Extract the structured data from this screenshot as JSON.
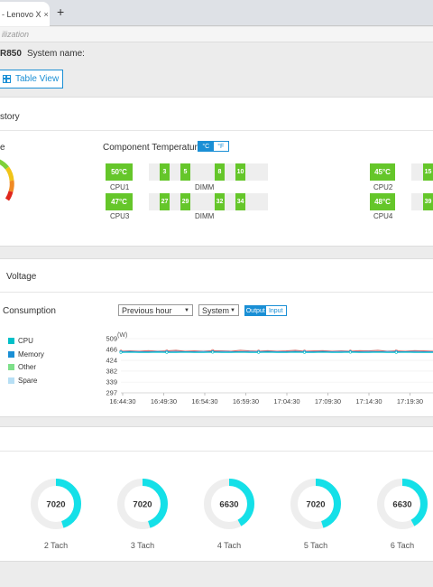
{
  "browser": {
    "tab_title": "- Lenovo X",
    "tab_close": "×",
    "new_tab": "+"
  },
  "breadcrumb": "ilization",
  "system": {
    "model": "R850",
    "system_name_label": "System name:",
    "table_view_label": "Table View"
  },
  "history_panel": {
    "title": "story",
    "gauge_label": "e",
    "component_temp_label": "Component Temperature",
    "unit_c": "°C",
    "unit_f": "°F",
    "cpus": [
      {
        "value": "50°C",
        "label": "CPU1"
      },
      {
        "value": "45°C",
        "label": "CPU2"
      },
      {
        "value": "47°C",
        "label": "CPU3"
      },
      {
        "value": "48°C",
        "label": "CPU4"
      }
    ],
    "dimm_label": "DIMM",
    "dimm_row1": [
      "3",
      "5",
      "8",
      "10"
    ],
    "dimm_row1_right": "15",
    "dimm_row2": [
      "27",
      "29",
      "32",
      "34"
    ],
    "dimm_row2_right": "39"
  },
  "voltage_panel": {
    "title": "Voltage",
    "consumption_label": "Consumption",
    "range_select": "Previous hour",
    "scope_select": "System",
    "output_label": "Output",
    "input_label": "Input",
    "legend": [
      {
        "name": "CPU",
        "color": "#00c0c8"
      },
      {
        "name": "Memory",
        "color": "#1a8fd5"
      },
      {
        "name": "Other",
        "color": "#7ee08a"
      },
      {
        "name": "Spare",
        "color": "#b7dff5"
      }
    ]
  },
  "chart_data": {
    "type": "line",
    "ylabel": "(W)",
    "yticks": [
      "509",
      "466",
      "424",
      "382",
      "339",
      "297"
    ],
    "xticks": [
      "16:44:30",
      "16:49:30",
      "16:54:30",
      "16:59:30",
      "17:04:30",
      "17:09:30",
      "17:14:30",
      "17:19:30"
    ],
    "ylim": [
      297,
      509
    ],
    "series": [
      {
        "name": "",
        "color": "#d9534f",
        "values": [
          460,
          461,
          460,
          462,
          460,
          461,
          463,
          460,
          461,
          460,
          462,
          461,
          460,
          463,
          461,
          460,
          462,
          460,
          461,
          463,
          460,
          461,
          462,
          460,
          461,
          460,
          462,
          461,
          463,
          460,
          461,
          460,
          462,
          461,
          460
        ]
      },
      {
        "name": "",
        "color": "#1a8fd5",
        "values": [
          458,
          459,
          458,
          458,
          459,
          458,
          459,
          458,
          458,
          459,
          458,
          459,
          458,
          458,
          459,
          458,
          459,
          458,
          458,
          459,
          458,
          458,
          459,
          458,
          459,
          458,
          458,
          459,
          458,
          459,
          458,
          458,
          459,
          458,
          458
        ]
      },
      {
        "name": "",
        "color": "#00c0c8",
        "values": [
          455,
          456,
          455,
          455,
          456,
          455,
          455,
          456,
          455,
          455,
          456,
          455,
          455,
          456,
          455,
          455,
          456,
          455,
          455,
          456,
          455,
          455,
          456,
          455,
          455,
          456,
          455,
          455,
          456,
          455,
          455,
          456,
          455,
          455,
          455
        ]
      }
    ],
    "grid": true
  },
  "fan_panel": {
    "tachs": [
      {
        "value": "7020",
        "label": "2 Tach",
        "fraction": 0.45
      },
      {
        "value": "7020",
        "label": "3 Tach",
        "fraction": 0.45
      },
      {
        "value": "6630",
        "label": "4 Tach",
        "fraction": 0.42
      },
      {
        "value": "7020",
        "label": "5 Tach",
        "fraction": 0.45
      },
      {
        "value": "6630",
        "label": "6 Tach",
        "fraction": 0.42
      }
    ],
    "ring_color": "#14e0e8",
    "track_color": "#eeeeee"
  }
}
